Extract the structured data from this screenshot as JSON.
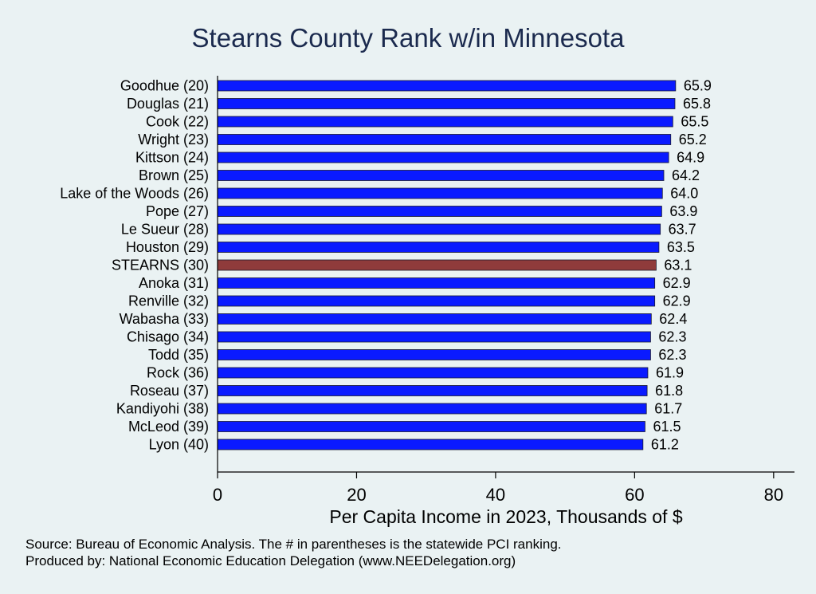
{
  "chart_data": {
    "type": "bar",
    "orientation": "horizontal",
    "title": "Stearns County Rank w/in Minnesota",
    "xlabel": "Per Capita Income in 2023, Thousands of $",
    "ylabel": "",
    "xlim": [
      0,
      83
    ],
    "x_ticks": [
      "0",
      "20",
      "40",
      "60",
      "80"
    ],
    "x_tick_values": [
      0,
      20,
      40,
      60,
      80
    ],
    "grid": false,
    "categories": [
      "Goodhue (20)",
      "Douglas (21)",
      "Cook (22)",
      "Wright (23)",
      "Kittson (24)",
      "Brown (25)",
      "Lake of the Woods (26)",
      "Pope (27)",
      "Le Sueur (28)",
      "Houston (29)",
      "STEARNS (30)",
      "Anoka (31)",
      "Renville (32)",
      "Wabasha (33)",
      "Chisago (34)",
      "Todd (35)",
      "Rock (36)",
      "Roseau (37)",
      "Kandiyohi (38)",
      "McLeod (39)",
      "Lyon (40)"
    ],
    "values": [
      65.9,
      65.8,
      65.5,
      65.2,
      64.9,
      64.2,
      64.0,
      63.9,
      63.7,
      63.5,
      63.1,
      62.9,
      62.9,
      62.4,
      62.3,
      62.3,
      61.9,
      61.8,
      61.7,
      61.5,
      61.2
    ],
    "value_labels": [
      "65.9",
      "65.8",
      "65.5",
      "65.2",
      "64.9",
      "64.2",
      "64.0",
      "63.9",
      "63.7",
      "63.5",
      "63.1",
      "62.9",
      "62.9",
      "62.4",
      "62.3",
      "62.3",
      "61.9",
      "61.8",
      "61.7",
      "61.5",
      "61.2"
    ],
    "highlight_category": "STEARNS (30)",
    "colors": {
      "bar": "#0a1aff",
      "highlight": "#8f3b3b",
      "bar_edge": "#1a1a2e",
      "title": "#1b2a4e",
      "background": "#eaf2f3"
    }
  },
  "footnotes": [
    "Source: Bureau of Economic Analysis. The # in parentheses is the statewide PCI ranking.",
    "Produced by: National Economic Education Delegation (www.NEEDelegation.org)"
  ]
}
